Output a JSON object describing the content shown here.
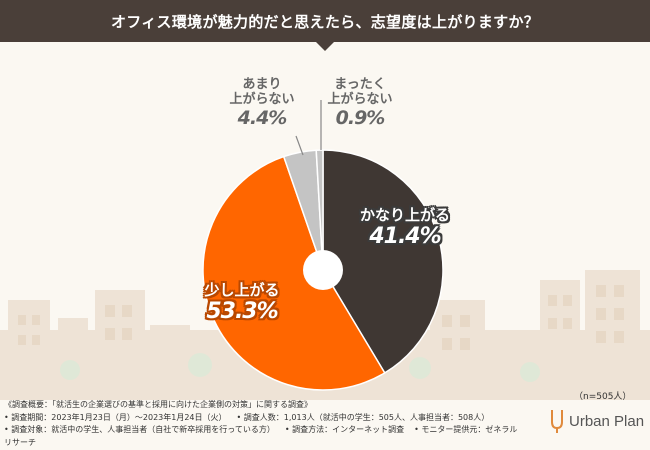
{
  "title": "オフィス環境が魅力的だと思えたら、志望度は上がりますか？",
  "colors": {
    "dark": "#3f3733",
    "orange": "#ff6600",
    "grey": "#c4c4c4",
    "banner": "#4a3f39"
  },
  "chart_data": {
    "type": "pie",
    "title": "オフィス環境が魅力的だと思えたら、志望度は上がりますか？",
    "hole": true,
    "slices": [
      {
        "label": "かなり上がる",
        "value": 41.4,
        "display": "41.4%",
        "color": "#3f3733"
      },
      {
        "label": "少し上がる",
        "value": 53.3,
        "display": "53.3%",
        "color": "#ff6600"
      },
      {
        "label": "あまり上がらない",
        "value": 4.4,
        "display": "4.4%",
        "color": "#c4c4c4"
      },
      {
        "label": "まったく上がらない",
        "value": 0.9,
        "display": "0.9%",
        "color": "#c4c4c4"
      }
    ],
    "labels": {
      "kanari": {
        "line1": "かなり上がる",
        "value": "41.4%"
      },
      "sukoshi": {
        "line1": "少し上がる",
        "value": "53.3%"
      },
      "amari": {
        "line1": "あまり",
        "line2": "上がらない",
        "value": "4.4%"
      },
      "mattaku": {
        "line1": "まったく",
        "line2": "上がらない",
        "value": "0.9%"
      }
    },
    "sample_note": "（n=505人）"
  },
  "footer": {
    "line1": "《調査概要：「就活生の企業選びの基準と採用に向けた企業側の対策」に関する調査》",
    "period": "• 調査期間：2023年1月23日（月）～2023年1月24日（火）",
    "count": "• 調査人数：1,013人（就活中の学生：505人、人事担当者：508人）",
    "target": "• 調査対象：就活中の学生、人事担当者（自社で新卒採用を行っている方）",
    "method": "• 調査方法：インターネット調査",
    "provider": "• モニター提供元：ゼネラルリサーチ"
  },
  "logo": {
    "name": "Urban Plan"
  }
}
